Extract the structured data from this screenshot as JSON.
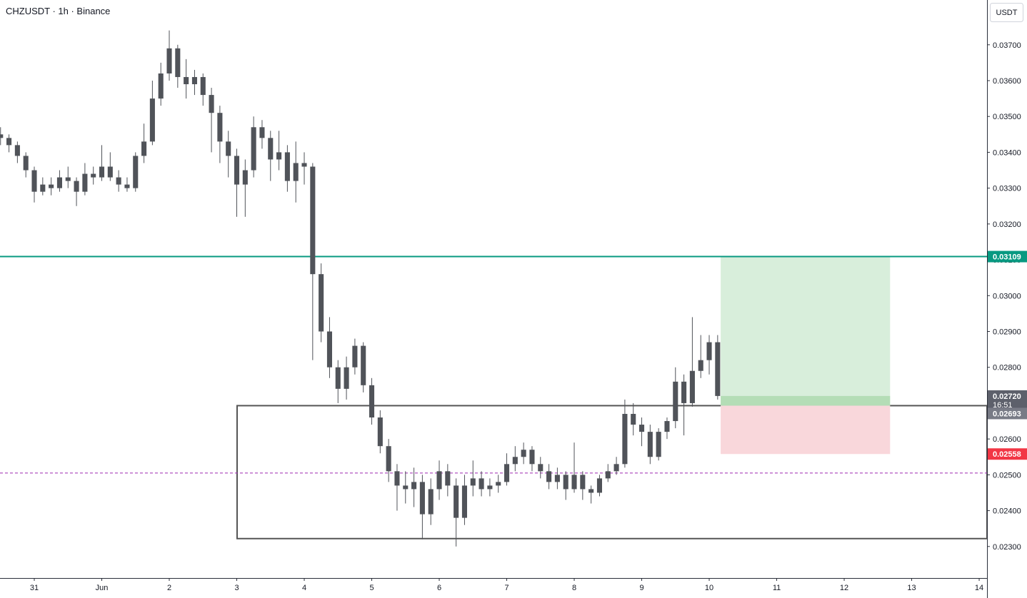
{
  "chart_data": {
    "type": "candlestick",
    "title": "CHZUSDT · 1h · Binance",
    "currency": "USDT",
    "color": "#505359",
    "grid": false,
    "xlim": [
      -0.508,
      14.116
    ],
    "ylim": [
      0.02212,
      0.03825
    ],
    "xticks": [
      {
        "value": 0,
        "label": "31"
      },
      {
        "value": 1,
        "label": "Jun"
      },
      {
        "value": 2,
        "label": "2"
      },
      {
        "value": 3,
        "label": "3"
      },
      {
        "value": 4,
        "label": "4"
      },
      {
        "value": 5,
        "label": "5"
      },
      {
        "value": 6,
        "label": "6"
      },
      {
        "value": 7,
        "label": "7"
      },
      {
        "value": 8,
        "label": "8"
      },
      {
        "value": 9,
        "label": "9"
      },
      {
        "value": 10,
        "label": "10"
      },
      {
        "value": 11,
        "label": "11"
      },
      {
        "value": 12,
        "label": "12"
      },
      {
        "value": 13,
        "label": "13"
      },
      {
        "value": 14,
        "label": "14"
      }
    ],
    "yticks": [
      {
        "value": 0.023,
        "label": "0.02300"
      },
      {
        "value": 0.024,
        "label": "0.02400"
      },
      {
        "value": 0.025,
        "label": "0.02500"
      },
      {
        "value": 0.026,
        "label": "0.02600"
      },
      {
        "value": 0.027,
        "label": "0.02700"
      },
      {
        "value": 0.028,
        "label": "0.02800"
      },
      {
        "value": 0.029,
        "label": "0.02900"
      },
      {
        "value": 0.03,
        "label": "0.03000"
      },
      {
        "value": 0.031,
        "label": "0.03100"
      },
      {
        "value": 0.032,
        "label": "0.03200"
      },
      {
        "value": 0.033,
        "label": "0.03300"
      },
      {
        "value": 0.034,
        "label": "0.03400"
      },
      {
        "value": 0.035,
        "label": "0.03500"
      },
      {
        "value": 0.036,
        "label": "0.03600"
      },
      {
        "value": 0.037,
        "label": "0.03700"
      }
    ],
    "x": [
      -0.5,
      -0.375,
      -0.25,
      -0.125,
      0,
      0.125,
      0.25,
      0.375,
      0.5,
      0.625,
      0.75,
      0.875,
      1,
      1.125,
      1.25,
      1.375,
      1.5,
      1.625,
      1.75,
      1.875,
      2,
      2.125,
      2.25,
      2.375,
      2.5,
      2.625,
      2.75,
      2.875,
      3,
      3.125,
      3.25,
      3.375,
      3.5,
      3.625,
      3.75,
      3.875,
      4,
      4.125,
      4.25,
      4.375,
      4.5,
      4.625,
      4.75,
      4.875,
      5,
      5.125,
      5.25,
      5.375,
      5.5,
      5.625,
      5.75,
      5.875,
      6,
      6.125,
      6.25,
      6.375,
      6.5,
      6.625,
      6.75,
      6.875,
      7,
      7.125,
      7.25,
      7.375,
      7.5,
      7.625,
      7.75,
      7.875,
      8,
      8.125,
      8.25,
      8.375,
      8.5,
      8.625,
      8.75,
      8.875,
      9,
      9.125,
      9.25,
      9.375,
      9.5,
      9.625,
      9.75,
      9.875,
      10,
      10.125
    ],
    "ohlc": [
      [
        0.0345,
        0.0347,
        0.0342,
        0.0344
      ],
      [
        0.0344,
        0.0345,
        0.034,
        0.0342
      ],
      [
        0.0342,
        0.0343,
        0.0337,
        0.0339
      ],
      [
        0.0339,
        0.034,
        0.0333,
        0.0335
      ],
      [
        0.0335,
        0.0336,
        0.0326,
        0.0329
      ],
      [
        0.0329,
        0.0333,
        0.0328,
        0.0331
      ],
      [
        0.0331,
        0.0333,
        0.0328,
        0.033
      ],
      [
        0.033,
        0.0335,
        0.0329,
        0.0333
      ],
      [
        0.0333,
        0.0336,
        0.033,
        0.0332
      ],
      [
        0.0332,
        0.0333,
        0.0325,
        0.0329
      ],
      [
        0.0329,
        0.0337,
        0.0328,
        0.0334
      ],
      [
        0.0334,
        0.0336,
        0.0331,
        0.0333
      ],
      [
        0.0333,
        0.0342,
        0.0332,
        0.0336
      ],
      [
        0.0336,
        0.034,
        0.0332,
        0.0333
      ],
      [
        0.0333,
        0.0335,
        0.0329,
        0.0331
      ],
      [
        0.0331,
        0.0333,
        0.0329,
        0.033
      ],
      [
        0.033,
        0.034,
        0.0329,
        0.0339
      ],
      [
        0.0339,
        0.0348,
        0.0337,
        0.0343
      ],
      [
        0.0343,
        0.036,
        0.0342,
        0.0355
      ],
      [
        0.0355,
        0.0365,
        0.0353,
        0.0362
      ],
      [
        0.0362,
        0.0374,
        0.036,
        0.0369
      ],
      [
        0.0369,
        0.037,
        0.0358,
        0.0361
      ],
      [
        0.0361,
        0.0366,
        0.0355,
        0.0359
      ],
      [
        0.0359,
        0.0363,
        0.0356,
        0.0361
      ],
      [
        0.0361,
        0.0362,
        0.0353,
        0.0356
      ],
      [
        0.0356,
        0.0358,
        0.034,
        0.0351
      ],
      [
        0.0351,
        0.0353,
        0.0337,
        0.0343
      ],
      [
        0.0343,
        0.0346,
        0.0333,
        0.0339
      ],
      [
        0.0339,
        0.0341,
        0.0322,
        0.0331
      ],
      [
        0.0331,
        0.0338,
        0.0322,
        0.0335
      ],
      [
        0.0335,
        0.035,
        0.0333,
        0.0347
      ],
      [
        0.0347,
        0.0349,
        0.0341,
        0.0344
      ],
      [
        0.0344,
        0.0346,
        0.0332,
        0.0338
      ],
      [
        0.0338,
        0.0346,
        0.0335,
        0.034
      ],
      [
        0.034,
        0.0342,
        0.0329,
        0.0332
      ],
      [
        0.0332,
        0.0343,
        0.0326,
        0.0337
      ],
      [
        0.0337,
        0.034,
        0.0331,
        0.0336
      ],
      [
        0.0336,
        0.0337,
        0.0282,
        0.0306
      ],
      [
        0.0306,
        0.0309,
        0.0287,
        0.029
      ],
      [
        0.029,
        0.0294,
        0.0277,
        0.028
      ],
      [
        0.028,
        0.0282,
        0.027,
        0.0274
      ],
      [
        0.0274,
        0.0283,
        0.0271,
        0.028
      ],
      [
        0.028,
        0.0288,
        0.0278,
        0.0286
      ],
      [
        0.0286,
        0.0287,
        0.0273,
        0.0275
      ],
      [
        0.0275,
        0.0277,
        0.0264,
        0.0266
      ],
      [
        0.0266,
        0.0268,
        0.0256,
        0.0258
      ],
      [
        0.0258,
        0.026,
        0.0248,
        0.0251
      ],
      [
        0.0251,
        0.0253,
        0.024,
        0.0247
      ],
      [
        0.0247,
        0.0251,
        0.0242,
        0.0246
      ],
      [
        0.0246,
        0.0252,
        0.0241,
        0.0248
      ],
      [
        0.0248,
        0.025,
        0.0232,
        0.0239
      ],
      [
        0.0239,
        0.0249,
        0.0236,
        0.0246
      ],
      [
        0.0246,
        0.0254,
        0.0243,
        0.0251
      ],
      [
        0.0251,
        0.0253,
        0.0244,
        0.0247
      ],
      [
        0.0247,
        0.0249,
        0.023,
        0.0238
      ],
      [
        0.0238,
        0.025,
        0.0236,
        0.0247
      ],
      [
        0.0247,
        0.0254,
        0.0244,
        0.0249
      ],
      [
        0.0249,
        0.0251,
        0.0244,
        0.0246
      ],
      [
        0.0246,
        0.0249,
        0.0244,
        0.0247
      ],
      [
        0.0247,
        0.025,
        0.0245,
        0.0248
      ],
      [
        0.0248,
        0.0256,
        0.0247,
        0.0253
      ],
      [
        0.0253,
        0.0258,
        0.0251,
        0.0255
      ],
      [
        0.0255,
        0.0259,
        0.0253,
        0.0257
      ],
      [
        0.0257,
        0.0258,
        0.0251,
        0.0253
      ],
      [
        0.0253,
        0.0255,
        0.0249,
        0.0251
      ],
      [
        0.0251,
        0.0253,
        0.0246,
        0.0248
      ],
      [
        0.0248,
        0.0252,
        0.0246,
        0.025
      ],
      [
        0.025,
        0.0251,
        0.0243,
        0.0246
      ],
      [
        0.0246,
        0.0259,
        0.0245,
        0.025
      ],
      [
        0.025,
        0.0251,
        0.0243,
        0.0246
      ],
      [
        0.0246,
        0.0247,
        0.0242,
        0.0245
      ],
      [
        0.0245,
        0.025,
        0.0244,
        0.0249
      ],
      [
        0.0249,
        0.0253,
        0.0248,
        0.0251
      ],
      [
        0.0251,
        0.0255,
        0.025,
        0.0253
      ],
      [
        0.0253,
        0.0271,
        0.0252,
        0.0267
      ],
      [
        0.0267,
        0.027,
        0.0261,
        0.0264
      ],
      [
        0.0264,
        0.0266,
        0.0258,
        0.0262
      ],
      [
        0.0262,
        0.0264,
        0.0253,
        0.0255
      ],
      [
        0.0255,
        0.0263,
        0.0254,
        0.0262
      ],
      [
        0.0262,
        0.0266,
        0.026,
        0.0265
      ],
      [
        0.0265,
        0.028,
        0.0263,
        0.0276
      ],
      [
        0.0276,
        0.0278,
        0.0261,
        0.027
      ],
      [
        0.027,
        0.0294,
        0.0269,
        0.0279
      ],
      [
        0.0279,
        0.0289,
        0.0277,
        0.0282
      ],
      [
        0.0282,
        0.0289,
        0.0278,
        0.0287
      ],
      [
        0.0287,
        0.0289,
        0.0271,
        0.0272
      ]
    ],
    "level": {
      "value": 0.03109,
      "color": "#089981"
    },
    "zone": {
      "x_start": 3.005,
      "top": 0.02693,
      "bottom": 0.02322,
      "mid": 0.02505,
      "color": "#555555",
      "mid_color": "#9c27b0"
    },
    "position": {
      "x": [
        10.17,
        12.68
      ],
      "entry": 0.02693,
      "target": 0.03109,
      "stop": 0.02558,
      "target_color": "#d8eedb",
      "stop_color": "#f9d7db"
    },
    "last_price": {
      "value": 0.0272,
      "label": "0.02720",
      "countdown": "16:51"
    }
  }
}
